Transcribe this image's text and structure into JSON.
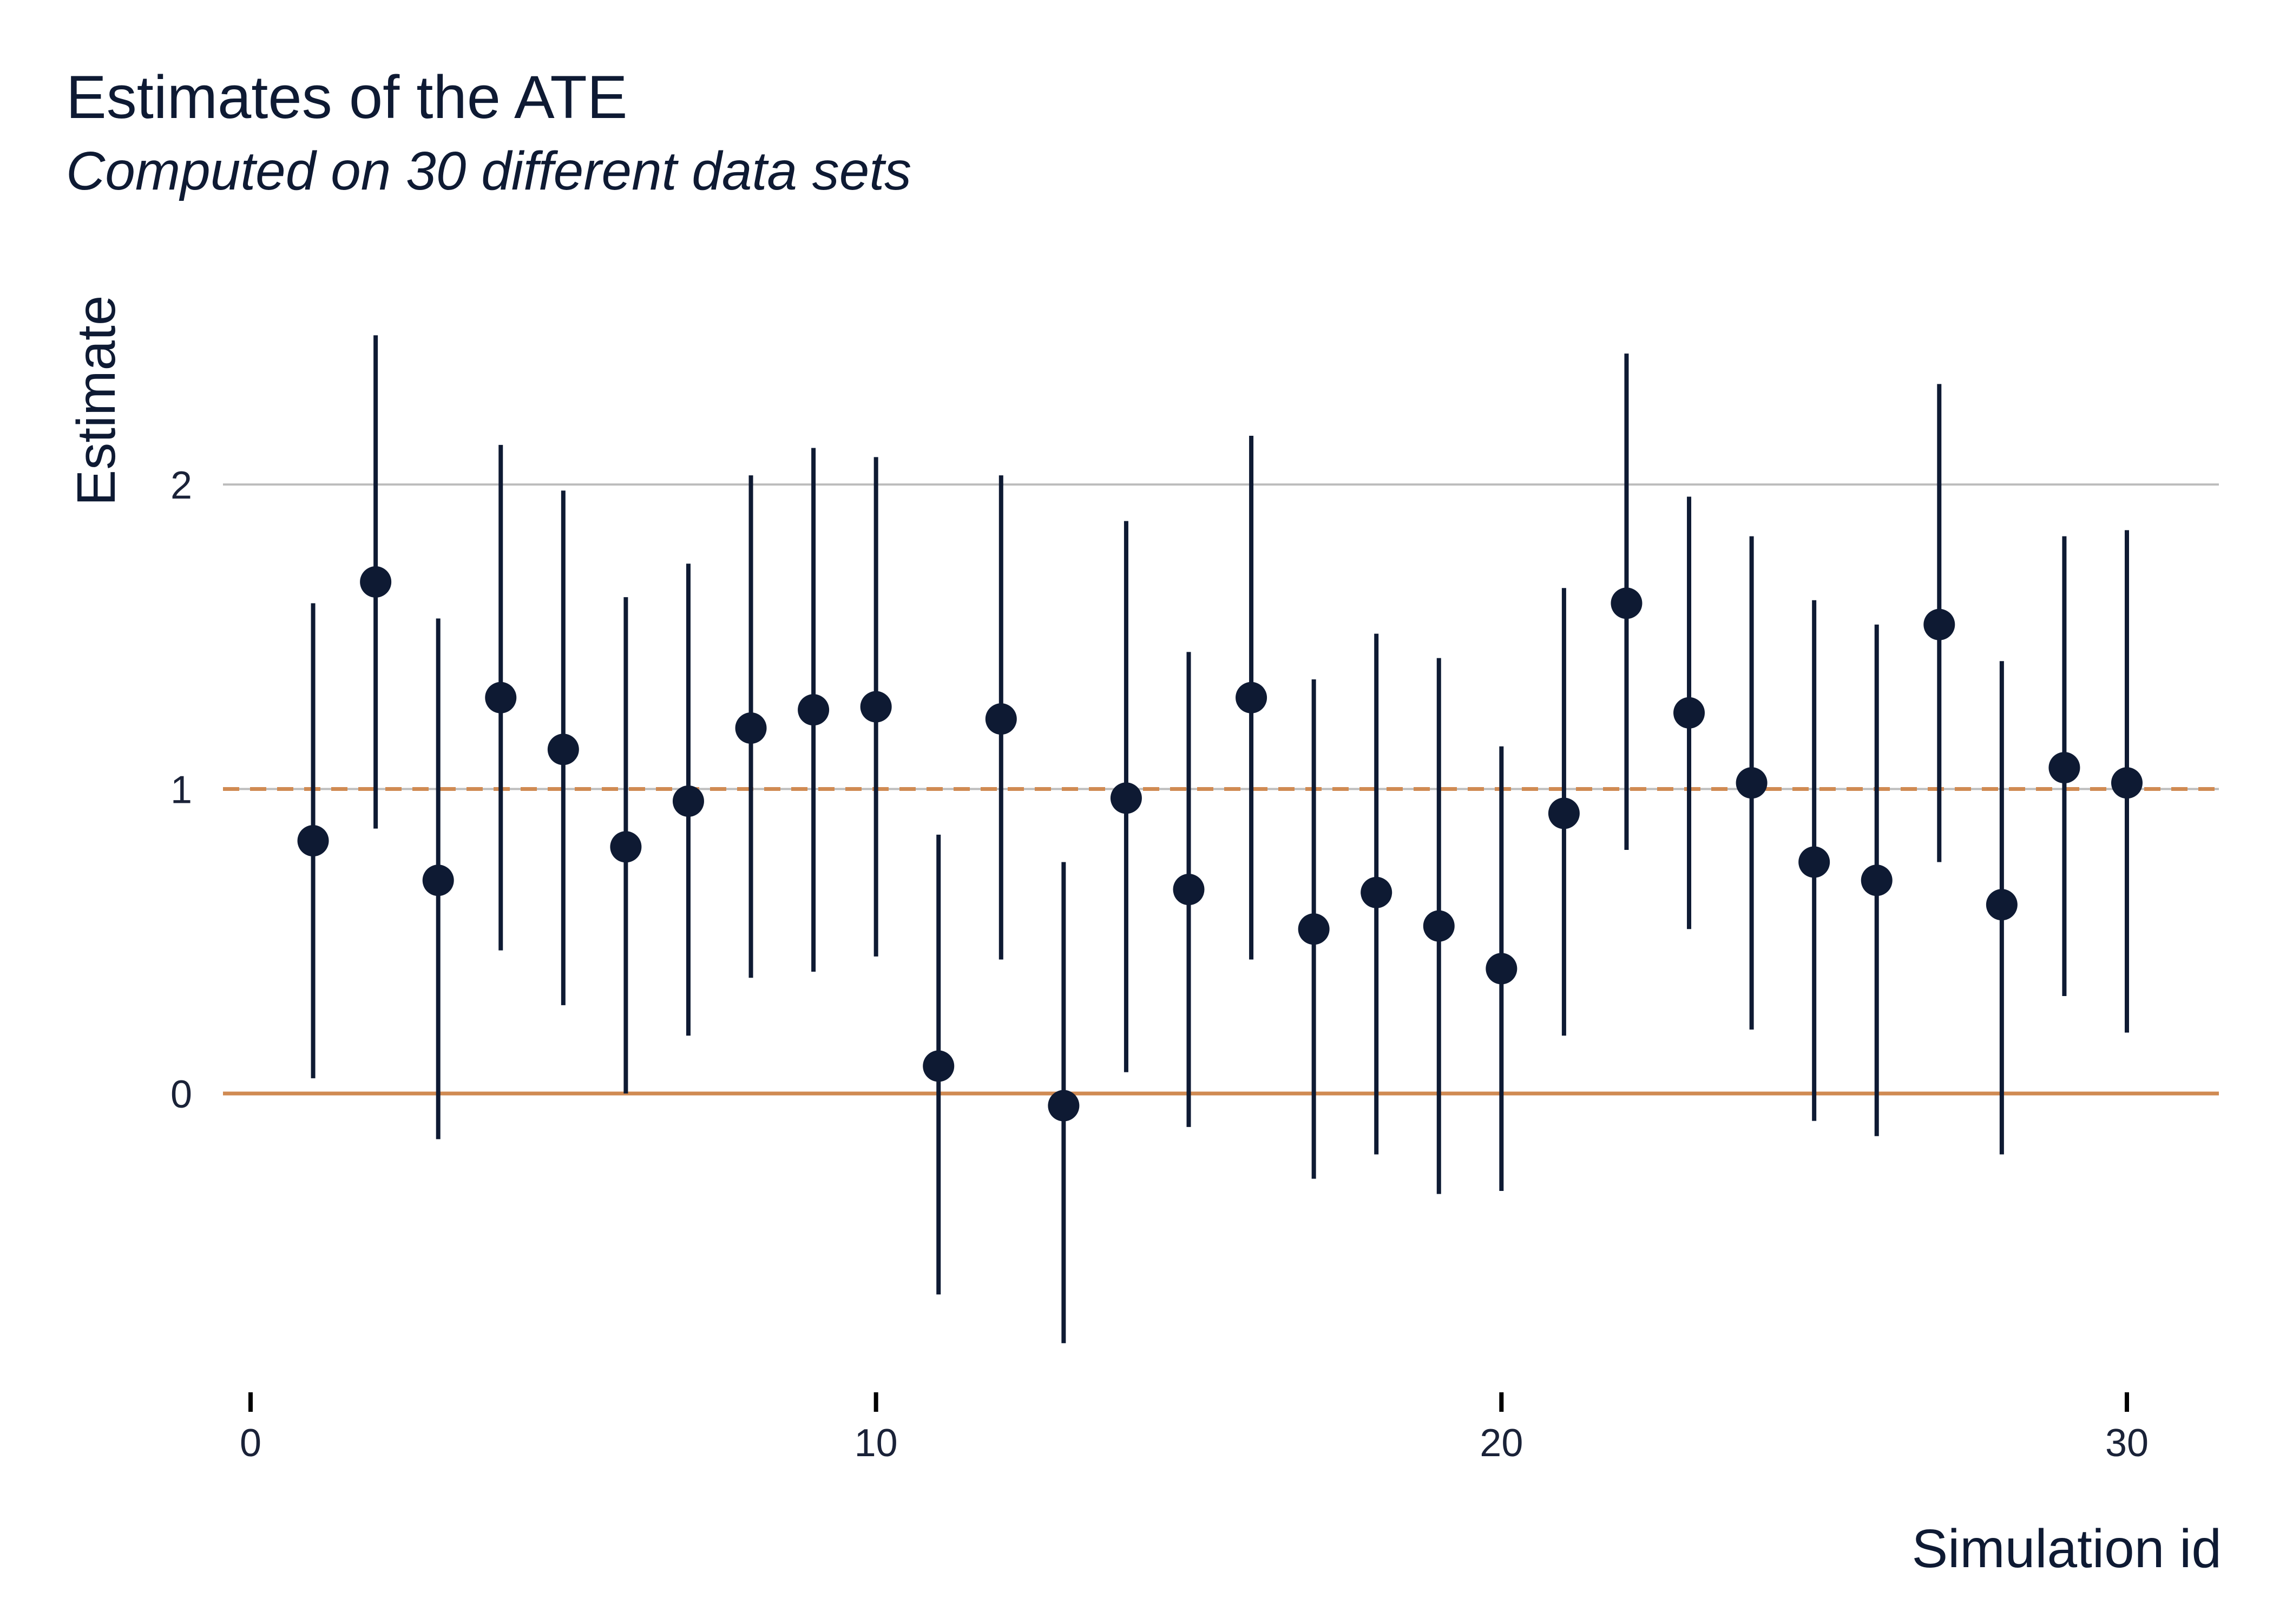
{
  "chart_data": {
    "type": "scatter",
    "title": "Estimates of the ATE",
    "subtitle": "Computed on 30 different data sets",
    "xlabel": "Simulation id",
    "ylabel": "Estimate",
    "xlim": [
      0,
      31.5
    ],
    "ylim": [
      -0.95,
      2.55
    ],
    "xticks": [
      0,
      10,
      20,
      30
    ],
    "yticks": [
      0,
      1,
      2
    ],
    "grid": "horizontal",
    "reference_lines": [
      {
        "value": 0,
        "style": "solid"
      },
      {
        "value": 1,
        "style": "dashed"
      }
    ],
    "x": [
      1,
      2,
      3,
      4,
      5,
      6,
      7,
      8,
      9,
      10,
      11,
      12,
      13,
      14,
      15,
      16,
      17,
      18,
      19,
      20,
      21,
      22,
      23,
      24,
      25,
      26,
      27,
      28,
      29,
      30
    ],
    "y": [
      0.83,
      1.68,
      0.7,
      1.3,
      1.13,
      0.81,
      0.96,
      1.2,
      1.26,
      1.27,
      0.09,
      1.23,
      -0.04,
      0.97,
      0.67,
      1.3,
      0.54,
      0.66,
      0.55,
      0.41,
      0.92,
      1.61,
      1.25,
      1.02,
      0.76,
      0.7,
      1.54,
      0.62,
      1.07,
      1.02
    ],
    "lower": [
      0.05,
      0.87,
      -0.15,
      0.47,
      0.29,
      0.0,
      0.19,
      0.38,
      0.4,
      0.45,
      -0.66,
      0.44,
      -0.82,
      0.07,
      -0.11,
      0.44,
      -0.28,
      -0.2,
      -0.33,
      -0.32,
      0.19,
      0.8,
      0.54,
      0.21,
      -0.09,
      -0.14,
      0.76,
      -0.2,
      0.32,
      0.2
    ],
    "upper": [
      1.61,
      2.49,
      1.56,
      2.13,
      1.98,
      1.63,
      1.74,
      2.03,
      2.12,
      2.09,
      0.85,
      2.03,
      0.76,
      1.88,
      1.45,
      2.16,
      1.36,
      1.51,
      1.43,
      1.14,
      1.66,
      2.43,
      1.96,
      1.83,
      1.62,
      1.54,
      2.33,
      1.42,
      1.83,
      1.85
    ],
    "colors": {
      "points": "#0e1a33",
      "reference": "#d08a52",
      "grid": "#bdbdbd",
      "text": "#0e1a33"
    }
  }
}
